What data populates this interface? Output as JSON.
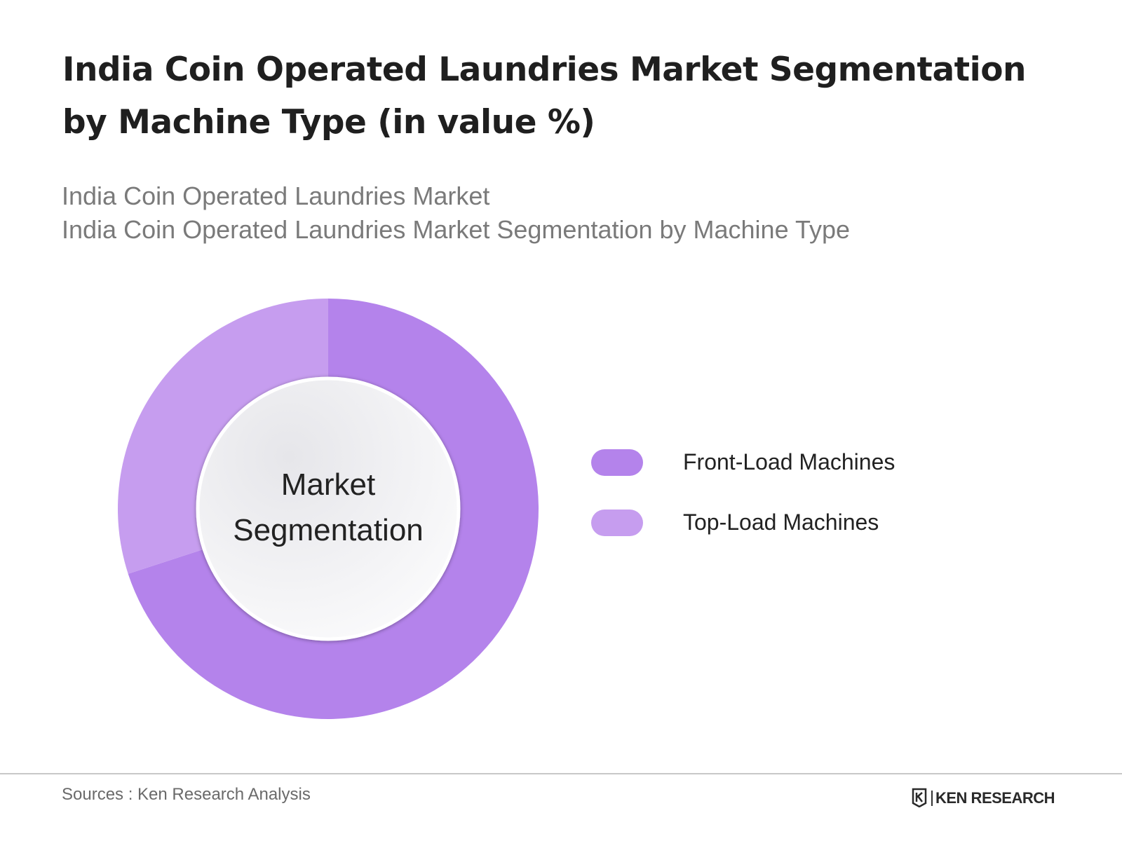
{
  "title": "India Coin Operated Laundries Market Segmentation by Machine Type (in value %)",
  "subtitle_line1": "India Coin Operated Laundries Market",
  "subtitle_line2": "India Coin Operated Laundries Market Segmentation by Machine Type",
  "center_label": {
    "line1": "Market",
    "line2": "Segmentation"
  },
  "chart_data": {
    "type": "pie",
    "variant": "donut",
    "categories": [
      "Front-Load Machines",
      "Top-Load Machines"
    ],
    "values": [
      70,
      30
    ],
    "colors": [
      "#b483eb",
      "#c69def"
    ],
    "legend_position": "right",
    "title": "India Coin Operated Laundries Market Segmentation by Machine Type (in value %)"
  },
  "footer": {
    "sources": "Sources : Ken Research Analysis",
    "brand": "KEN RESEARCH"
  }
}
